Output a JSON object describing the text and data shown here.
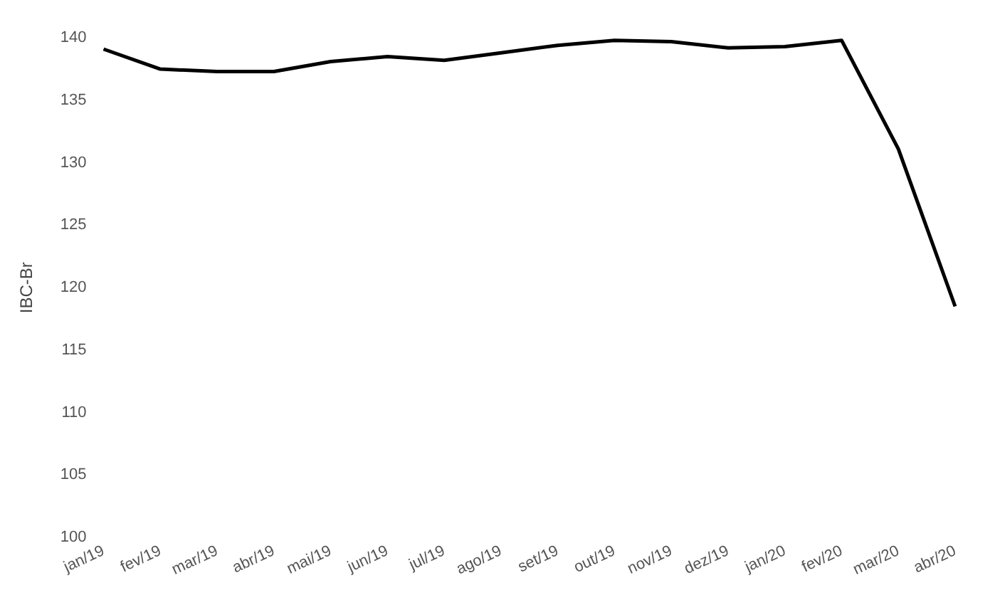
{
  "chart_data": {
    "type": "line",
    "ylabel": "IBC-Br",
    "categories": [
      "jan/19",
      "fev/19",
      "mar/19",
      "abr/19",
      "mai/19",
      "jun/19",
      "jul/19",
      "ago/19",
      "set/19",
      "out/19",
      "nov/19",
      "dez/19",
      "jan/20",
      "fev/20",
      "mar/20",
      "abr/20"
    ],
    "series": [
      {
        "color": "#000000",
        "values": [
          139.1,
          137.5,
          137.3,
          137.3,
          138.1,
          138.5,
          138.2,
          138.8,
          139.4,
          139.8,
          139.7,
          139.2,
          139.3,
          139.8,
          131.1,
          118.5
        ]
      }
    ],
    "ylim": [
      100,
      140
    ],
    "yticks": [
      100,
      105,
      110,
      115,
      120,
      125,
      130,
      135,
      140
    ],
    "grid": false,
    "legend": false,
    "marker": "none",
    "line_style": "solid"
  }
}
